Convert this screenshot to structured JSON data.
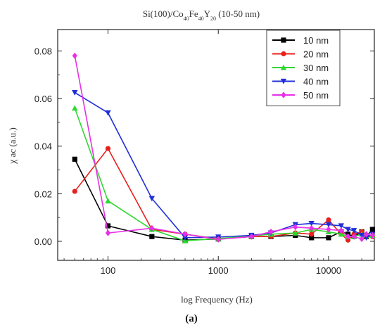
{
  "chart_data": {
    "type": "line",
    "title_main": "Si(100)/Co",
    "title_sub1": "40",
    "title_mid1": "Fe",
    "title_sub2": "40",
    "title_mid2": "Y",
    "title_sub3": "20",
    "title_tail": " (10-50 nm)",
    "xlabel": "log Frequency (Hz)",
    "ylabel": "χ_ac (a.u.)",
    "ylabel_main": "χ",
    "ylabel_rest": " ac (a.u.)",
    "panel_label": "(a)",
    "x_scale": "log",
    "xlim": [
      35,
      26000
    ],
    "ylim": [
      -0.008,
      0.089
    ],
    "x_ticks": [
      100,
      1000,
      10000
    ],
    "x_tick_labels": [
      "100",
      "1000",
      "10000"
    ],
    "y_ticks": [
      0.0,
      0.02,
      0.04,
      0.06,
      0.08
    ],
    "y_tick_labels": [
      "0.00",
      "0.02",
      "0.04",
      "0.06",
      "0.08"
    ],
    "legend_position": "top-right",
    "grid": false,
    "series": [
      {
        "name": "10 nm",
        "color": "#000000",
        "marker": "square",
        "x": [
          50,
          100,
          250,
          500,
          1000,
          2000,
          3000,
          5000,
          7000,
          10000,
          13000,
          15000,
          17000,
          20000,
          22000,
          25000
        ],
        "y": [
          0.0345,
          0.0065,
          0.002,
          0.0005,
          0.001,
          0.002,
          0.002,
          0.0025,
          0.0015,
          0.0015,
          0.004,
          0.003,
          0.002,
          0.004,
          0.002,
          0.005
        ]
      },
      {
        "name": "20 nm",
        "color": "#e8201c",
        "marker": "circle",
        "x": [
          50,
          100,
          250,
          500,
          1000,
          2000,
          3000,
          5000,
          7000,
          10000,
          13000,
          15000,
          17000,
          20000,
          22000,
          25000
        ],
        "y": [
          0.021,
          0.039,
          0.005,
          0.003,
          0.001,
          0.002,
          0.002,
          0.0035,
          0.003,
          0.009,
          0.003,
          0.0005,
          0.003,
          0.004,
          0.002,
          0.002
        ]
      },
      {
        "name": "30 nm",
        "color": "#2fd82f",
        "marker": "triangle-up",
        "x": [
          50,
          100,
          250,
          500,
          1000,
          2000,
          3000,
          5000,
          7000,
          10000,
          13000,
          15000,
          17000,
          20000,
          22000,
          25000
        ],
        "y": [
          0.056,
          0.017,
          0.005,
          0.0002,
          0.0012,
          0.0022,
          0.003,
          0.0035,
          0.005,
          0.004,
          0.003,
          0.002,
          0.002,
          0.003,
          0.0025,
          0.0025
        ]
      },
      {
        "name": "40 nm",
        "color": "#1f2fd8",
        "marker": "triangle-down",
        "x": [
          50,
          100,
          250,
          500,
          1000,
          2000,
          3000,
          5000,
          7000,
          10000,
          13000,
          15000,
          17000,
          20000,
          22000,
          25000
        ],
        "y": [
          0.0625,
          0.054,
          0.018,
          0.0015,
          0.0018,
          0.0025,
          0.0035,
          0.007,
          0.0075,
          0.007,
          0.0065,
          0.005,
          0.0045,
          0.0025,
          0.0015,
          0.003
        ]
      },
      {
        "name": "50 nm",
        "color": "#e830e8",
        "marker": "diamond",
        "x": [
          50,
          100,
          250,
          500,
          1000,
          2000,
          3000,
          5000,
          7000,
          10000,
          13000,
          15000,
          17000,
          20000,
          22000,
          25000
        ],
        "y": [
          0.078,
          0.0035,
          0.0055,
          0.003,
          0.0008,
          0.002,
          0.004,
          0.006,
          0.0055,
          0.005,
          0.0045,
          0.002,
          0.002,
          0.001,
          0.003,
          0.0025
        ]
      }
    ]
  }
}
